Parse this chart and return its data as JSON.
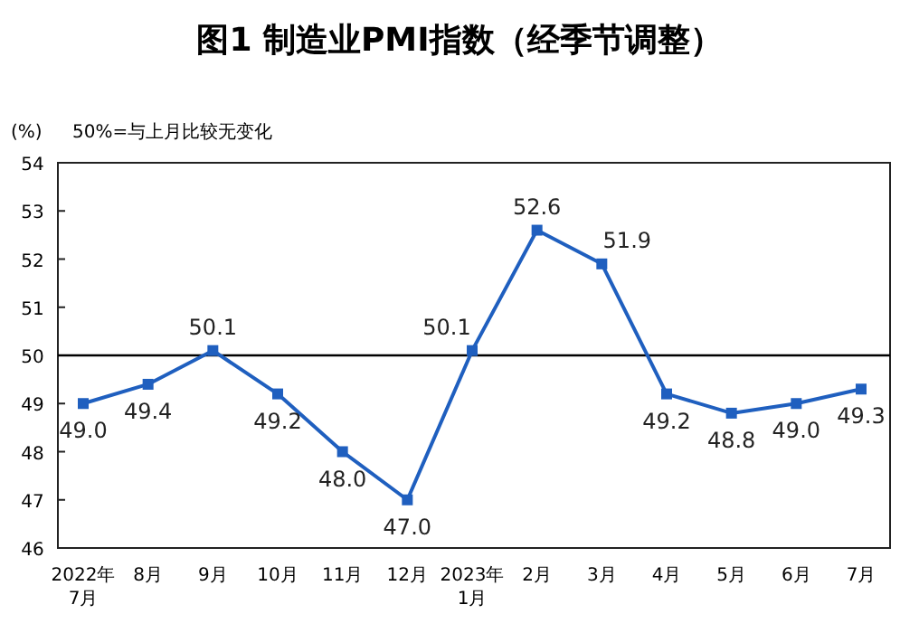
{
  "chart_data": {
    "type": "line",
    "title": "图1 制造业PMI指数（经季节调整）",
    "ylabel": "(%)",
    "annotations": [
      "50%=与上月比较无变化"
    ],
    "categories": [
      "2022年\n7月",
      "8月",
      "9月",
      "10月",
      "11月",
      "12月",
      "2023年\n1月",
      "2月",
      "3月",
      "4月",
      "5月",
      "6月",
      "7月"
    ],
    "series": [
      {
        "color": "#1f5fbf",
        "values": [
          49.0,
          49.4,
          50.1,
          49.2,
          48.0,
          47.0,
          50.1,
          52.6,
          51.9,
          49.2,
          48.8,
          49.0,
          49.3
        ],
        "value_labels": [
          "49.0",
          "49.4",
          "50.1",
          "49.2",
          "48.0",
          "47.0",
          "50.1",
          "52.6",
          "51.9",
          "49.2",
          "48.8",
          "49.0",
          "49.3"
        ]
      }
    ],
    "ylim": [
      46,
      54
    ],
    "yticks": [
      46,
      47,
      48,
      49,
      50,
      51,
      52,
      53,
      54
    ],
    "grid": false,
    "marker": "square",
    "line_style": "solid",
    "ref_lines": [
      {
        "axis": "y",
        "value": 50,
        "color": "#000000"
      }
    ]
  }
}
